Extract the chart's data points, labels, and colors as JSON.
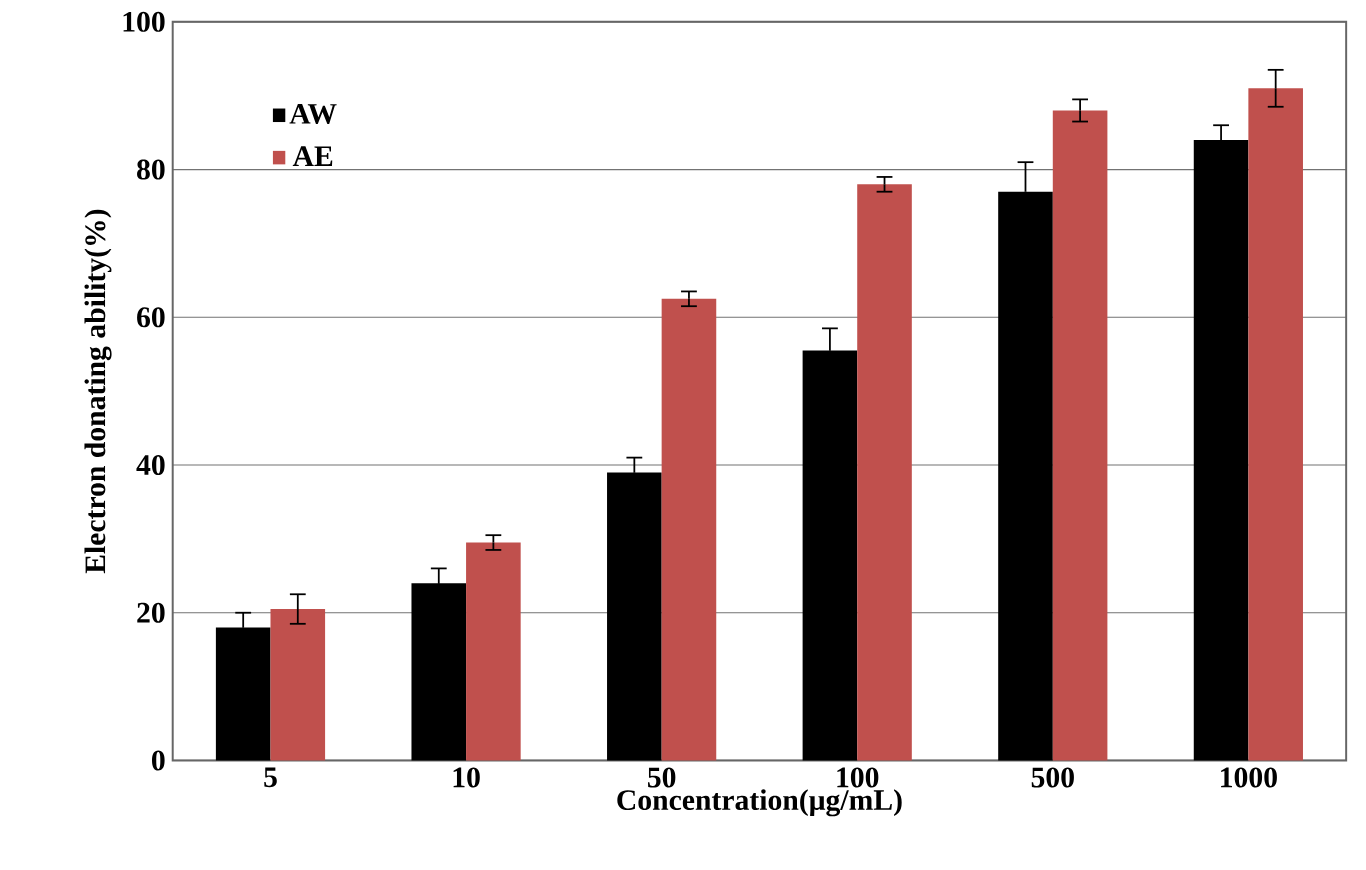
{
  "chart_data": {
    "type": "bar",
    "xlabel": "Concentration(μg/mL)",
    "ylabel": "Electron donating ability(%)",
    "categories": [
      "5",
      "10",
      "50",
      "100",
      "500",
      "1000"
    ],
    "series": [
      {
        "name": "AW",
        "color": "#000000",
        "values": [
          18,
          24,
          39,
          55.5,
          77,
          84
        ],
        "errors": [
          2,
          2,
          2,
          3,
          4,
          2
        ]
      },
      {
        "name": "AE",
        "color": "#c0504d",
        "values": [
          20.5,
          29.5,
          62.5,
          78,
          88,
          91
        ],
        "errors": [
          2,
          1,
          1,
          1,
          1.5,
          2.5
        ]
      }
    ],
    "ylim": [
      0,
      100
    ],
    "yticks": [
      0,
      20,
      40,
      60,
      80,
      100
    ],
    "grid": "y",
    "legend": "top left"
  }
}
